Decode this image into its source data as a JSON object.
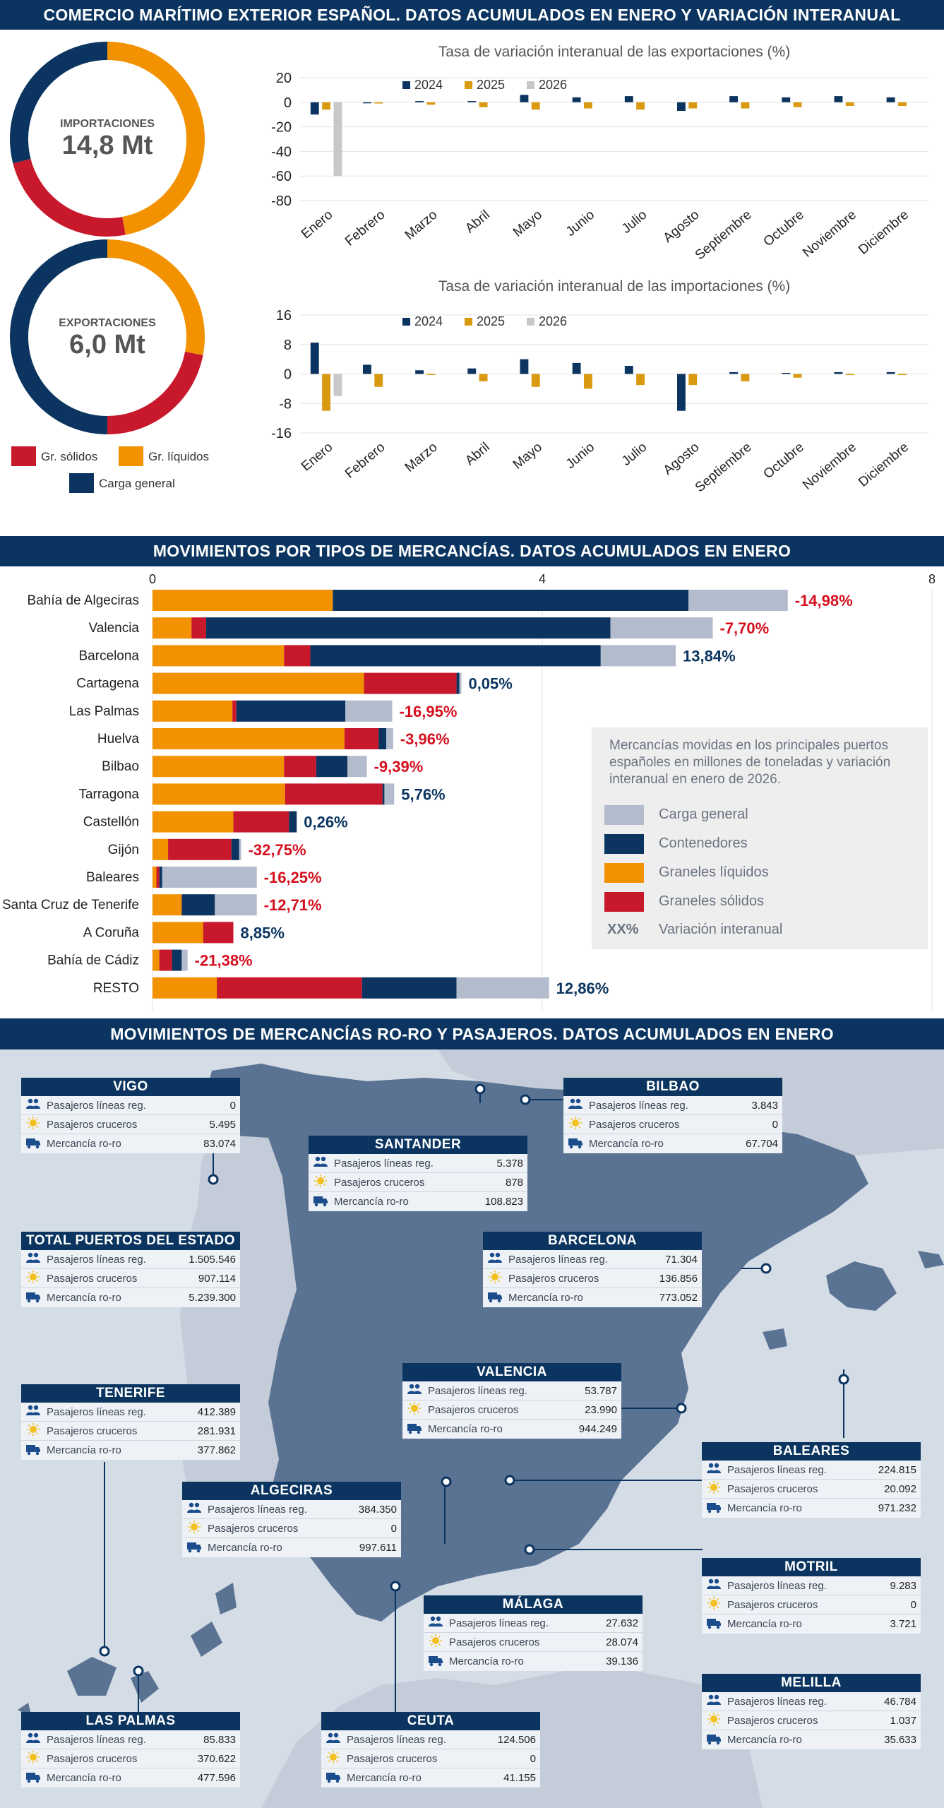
{
  "headers": {
    "top": "COMERCIO MARÍTIMO EXTERIOR ESPAÑOL. DATOS ACUMULADOS EN ENERO Y VARIACIÓN INTERANUAL",
    "middle": "MOVIMIENTOS POR TIPOS DE MERCANCÍAS. DATOS ACUMULADOS EN ENERO",
    "bottom": "MOVIMIENTOS DE MERCANCÍAS RO-RO Y PASAJEROS.  DATOS ACUMULADOS EN ENERO"
  },
  "colors": {
    "navy": "#0b3560",
    "orange": "#f39200",
    "red": "#c8182c",
    "grey": "#b2bccc",
    "lightgrey": "#c8c8c8",
    "sand": "#d99a12"
  },
  "chart_data": [
    {
      "type": "pie",
      "id": "donut-importaciones",
      "label": "IMPORTACIONES",
      "value_text": "14,8 Mt",
      "slices": [
        {
          "name": "Gr. líquidos",
          "value": 47
        },
        {
          "name": "Gr. sólidos",
          "value": 24
        },
        {
          "name": "Carga general",
          "value": 29
        }
      ]
    },
    {
      "type": "pie",
      "id": "donut-exportaciones",
      "label": "EXPORTACIONES",
      "value_text": "6,0 Mt",
      "slices": [
        {
          "name": "Gr. líquidos",
          "value": 28
        },
        {
          "name": "Gr. sólidos",
          "value": 22
        },
        {
          "name": "Carga general",
          "value": 50
        }
      ]
    },
    {
      "type": "bar",
      "id": "exportaciones-variacion",
      "title": "Tasa de variación interanual de las exportaciones (%)",
      "categories": [
        "Enero",
        "Febrero",
        "Marzo",
        "Abril",
        "Mayo",
        "Junio",
        "Julio",
        "Agosto",
        "Septiembre",
        "Octubre",
        "Noviembre",
        "Diciembre"
      ],
      "series": [
        {
          "name": "2024",
          "values": [
            -10,
            0,
            1,
            1,
            6,
            4,
            5,
            -7,
            5,
            4,
            5,
            4
          ]
        },
        {
          "name": "2025",
          "values": [
            -6,
            -1,
            -2,
            -4,
            -6,
            -5,
            -6,
            -5,
            -5,
            -4,
            -3,
            -3
          ]
        },
        {
          "name": "2026",
          "values": [
            -60,
            null,
            null,
            null,
            null,
            null,
            null,
            null,
            null,
            null,
            null,
            null
          ]
        }
      ],
      "yticks": [
        20,
        0,
        -20,
        -40,
        -60,
        -80
      ],
      "ylim": [
        -80,
        20
      ]
    },
    {
      "type": "bar",
      "id": "importaciones-variacion",
      "title": "Tasa de variación interanual de las importaciones (%)",
      "categories": [
        "Enero",
        "Febrero",
        "Marzo",
        "Abril",
        "Mayo",
        "Junio",
        "Julio",
        "Agosto",
        "Septiembre",
        "Octubre",
        "Noviembre",
        "Diciembre"
      ],
      "series": [
        {
          "name": "2024",
          "values": [
            8.5,
            2.5,
            1,
            1.5,
            4,
            3,
            2.2,
            -10,
            0.5,
            0.3,
            0.5,
            0.5
          ]
        },
        {
          "name": "2025",
          "values": [
            -10,
            -3.5,
            0,
            -2,
            -3.5,
            -4,
            -3,
            -3,
            -2,
            -1,
            -0.3,
            -0.3
          ]
        },
        {
          "name": "2026",
          "values": [
            -6,
            null,
            null,
            null,
            null,
            null,
            null,
            null,
            null,
            null,
            null,
            null
          ]
        }
      ],
      "yticks": [
        16,
        8,
        0,
        -8,
        -16
      ],
      "ylim": [
        -16,
        16
      ]
    },
    {
      "type": "bar",
      "id": "mercancias-puertos",
      "orientation": "horizontal-stacked",
      "xticks": [
        0,
        4,
        8
      ],
      "xlim": [
        0,
        8
      ],
      "categories": [
        "Bahía de Algeciras",
        "Valencia",
        "Barcelona",
        "Cartagena",
        "Las Palmas",
        "Huelva",
        "Bilbao",
        "Tarragona",
        "Castellón",
        "Gijón",
        "Baleares",
        "Santa Cruz de Tenerife",
        "A Coruña",
        "Bahía de Cádiz",
        "RESTO"
      ],
      "series": [
        {
          "name": "Graneles líquidos",
          "values": [
            1.85,
            0.4,
            1.35,
            2.17,
            0.82,
            1.97,
            1.35,
            1.36,
            0.83,
            0.16,
            0.04,
            0.3,
            0.52,
            0.07,
            0.66
          ]
        },
        {
          "name": "Graneles sólidos",
          "values": [
            0.0,
            0.15,
            0.27,
            0.95,
            0.04,
            0.35,
            0.33,
            1.0,
            0.57,
            0.65,
            0.03,
            0.0,
            0.31,
            0.13,
            1.49
          ]
        },
        {
          "name": "Contenedores",
          "values": [
            3.65,
            4.15,
            2.98,
            0.03,
            1.12,
            0.08,
            0.32,
            0.02,
            0.08,
            0.08,
            0.03,
            0.34,
            0.0,
            0.1,
            0.97
          ]
        },
        {
          "name": "Carga general",
          "values": [
            1.02,
            1.05,
            0.77,
            0.02,
            0.48,
            0.07,
            0.2,
            0.1,
            0.0,
            0.02,
            0.97,
            0.43,
            0.0,
            0.06,
            0.95
          ]
        }
      ],
      "variation": [
        "-14,98%",
        "-7,70%",
        "13,84%",
        "0,05%",
        "-16,95%",
        "-3,96%",
        "-9,39%",
        "5,76%",
        "0,26%",
        "-32,75%",
        "-16,25%",
        "-12,71%",
        "8,85%",
        "-21,38%",
        "12,86%"
      ],
      "variation_sign": [
        -1,
        -1,
        1,
        1,
        -1,
        -1,
        -1,
        1,
        1,
        -1,
        -1,
        -1,
        1,
        -1,
        1
      ],
      "legend": {
        "description": "Mercancías movidas en los principales puertos españoles en millones de toneladas y variación interanual en enero de 2026.",
        "items": [
          "Carga general",
          "Contenedores",
          "Graneles líquidos",
          "Graneles sólidos"
        ],
        "variation_symbol": "XX%",
        "variation_label": "Variación interanual"
      }
    }
  ],
  "donut_legend": {
    "solidos": "Gr. sólidos",
    "liquidos": "Gr. líquidos",
    "general": "Carga general"
  },
  "bar_legend_years": [
    "2024",
    "2025",
    "2026"
  ],
  "row_labels": {
    "lineas": "Pasajeros líneas reg.",
    "cruceros": "Pasajeros cruceros",
    "roro": "Mercancía ro-ro"
  },
  "ports": [
    {
      "id": "vigo",
      "name": "VIGO",
      "lineas": "0",
      "cruceros": "5.495",
      "roro": "83.074"
    },
    {
      "id": "bilbao",
      "name": "BILBAO",
      "lineas": "3.843",
      "cruceros": "0",
      "roro": "67.704"
    },
    {
      "id": "santander",
      "name": "SANTANDER",
      "lineas": "5.378",
      "cruceros": "878",
      "roro": "108.823"
    },
    {
      "id": "total",
      "name": "TOTAL PUERTOS DEL ESTADO",
      "lineas": "1.505.546",
      "cruceros": "907.114",
      "roro": "5.239.300"
    },
    {
      "id": "barcelona",
      "name": "BARCELONA",
      "lineas": "71.304",
      "cruceros": "136.856",
      "roro": "773.052"
    },
    {
      "id": "tenerife",
      "name": "TENERIFE",
      "lineas": "412.389",
      "cruceros": "281.931",
      "roro": "377.862"
    },
    {
      "id": "valencia",
      "name": "VALENCIA",
      "lineas": "53.787",
      "cruceros": "23.990",
      "roro": "944.249"
    },
    {
      "id": "baleares",
      "name": "BALEARES",
      "lineas": "224.815",
      "cruceros": "20.092",
      "roro": "971.232"
    },
    {
      "id": "algeciras",
      "name": "ALGECIRAS",
      "lineas": "384.350",
      "cruceros": "0",
      "roro": "997.611"
    },
    {
      "id": "motril",
      "name": "MOTRIL",
      "lineas": "9.283",
      "cruceros": "0",
      "roro": "3.721"
    },
    {
      "id": "malaga",
      "name": "MÁLAGA",
      "lineas": "27.632",
      "cruceros": "28.074",
      "roro": "39.136"
    },
    {
      "id": "melilla",
      "name": "MELILLA",
      "lineas": "46.784",
      "cruceros": "1.037",
      "roro": "35.633"
    },
    {
      "id": "las-palmas",
      "name": "LAS PALMAS",
      "lineas": "85.833",
      "cruceros": "370.622",
      "roro": "477.596"
    },
    {
      "id": "ceuta",
      "name": "CEUTA",
      "lineas": "124.506",
      "cruceros": "0",
      "roro": "41.155"
    }
  ]
}
